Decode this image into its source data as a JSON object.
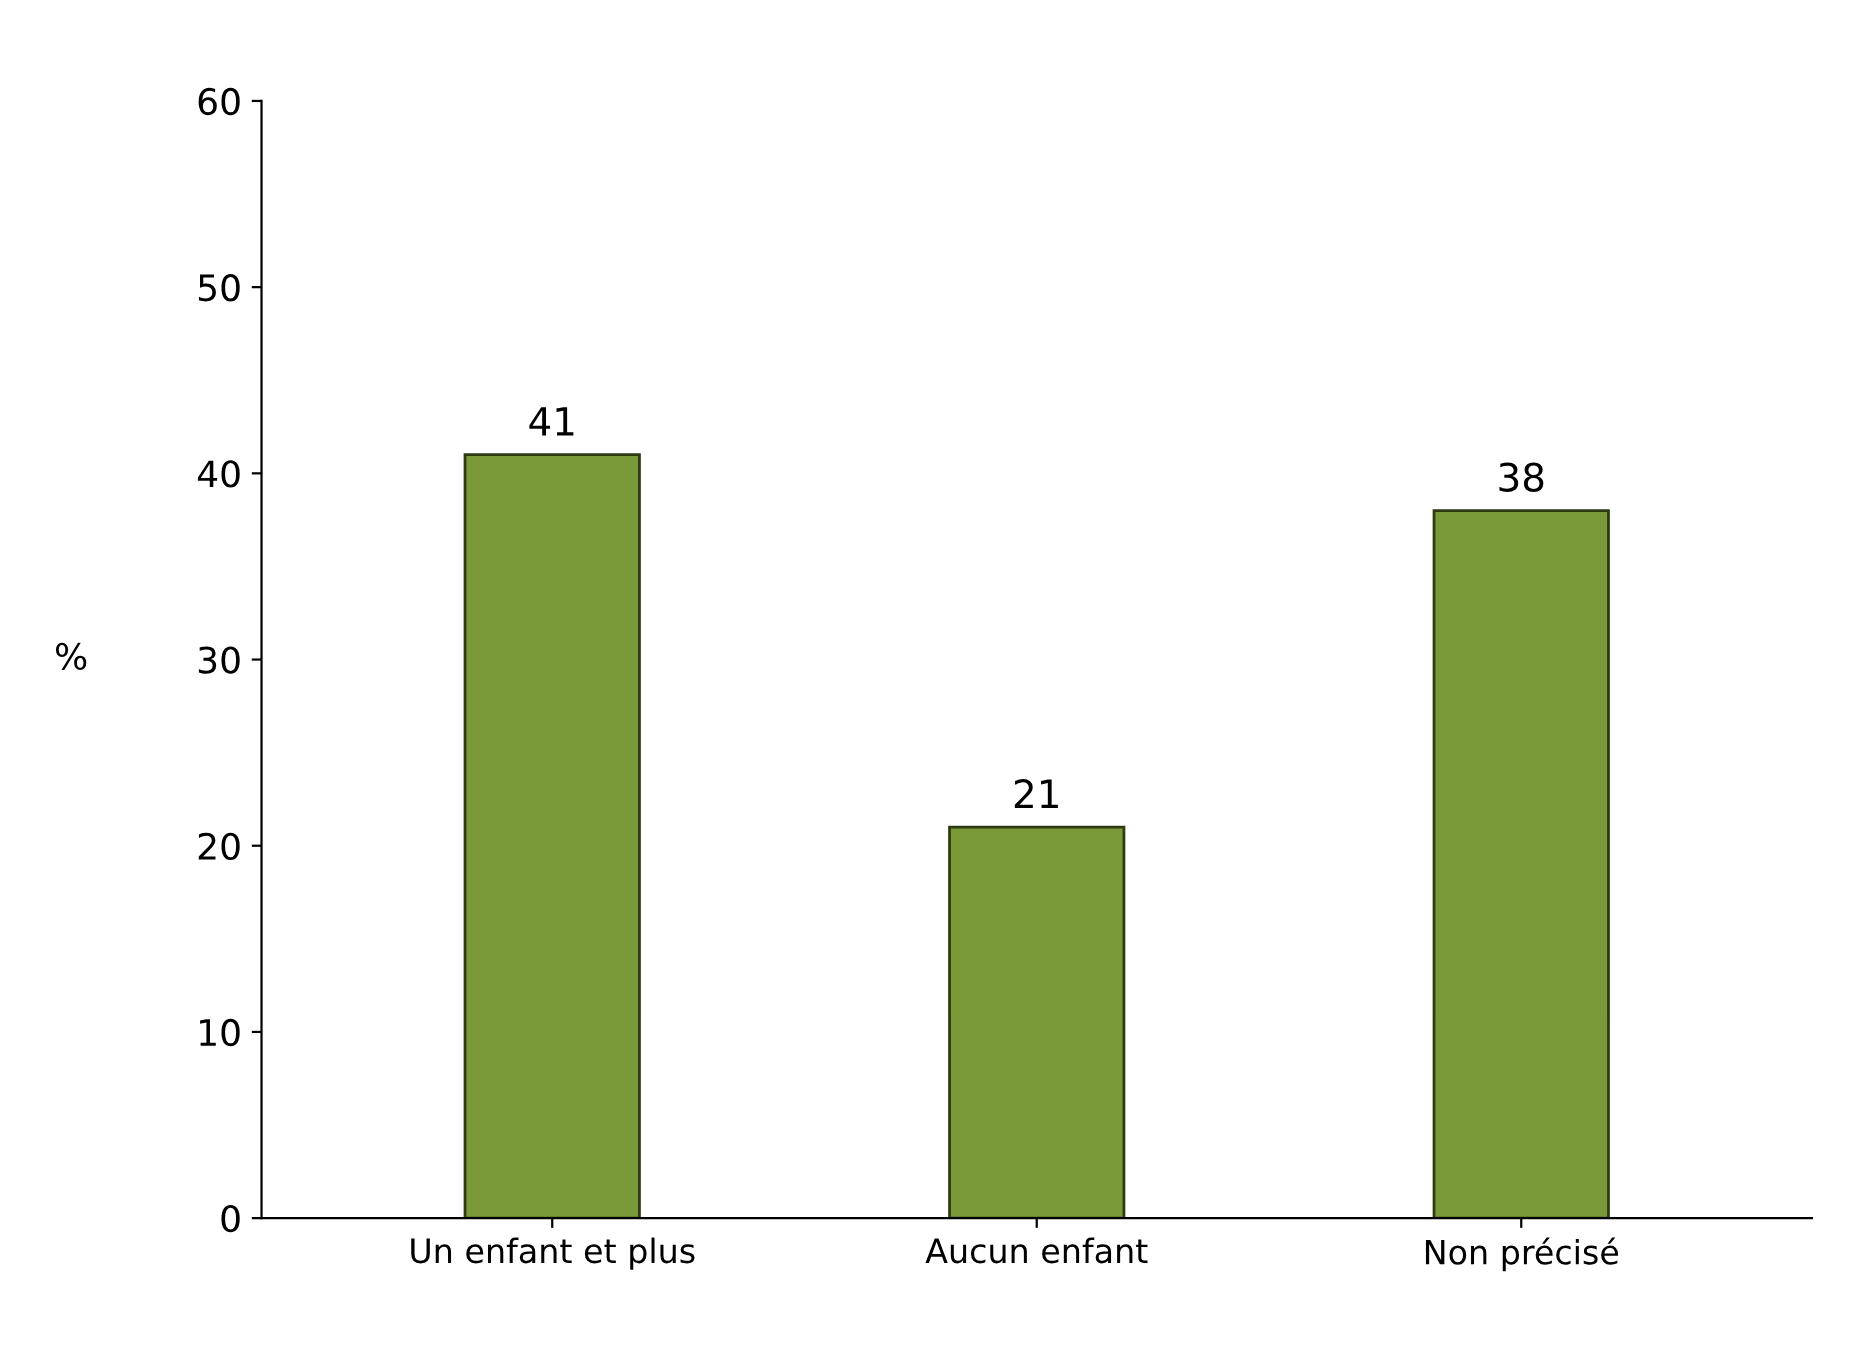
{
  "chart_data": {
    "type": "bar",
    "ylabel": "%",
    "categories": [
      "Un enfant et plus",
      "Aucun enfant",
      "Non précisé"
    ],
    "values": [
      41,
      21,
      38
    ],
    "color": "#7a9a3a",
    "ylim": [
      0,
      60
    ],
    "yticks": [
      0,
      10,
      20,
      30,
      40,
      50,
      60
    ],
    "grid": false,
    "data_labels": true
  }
}
